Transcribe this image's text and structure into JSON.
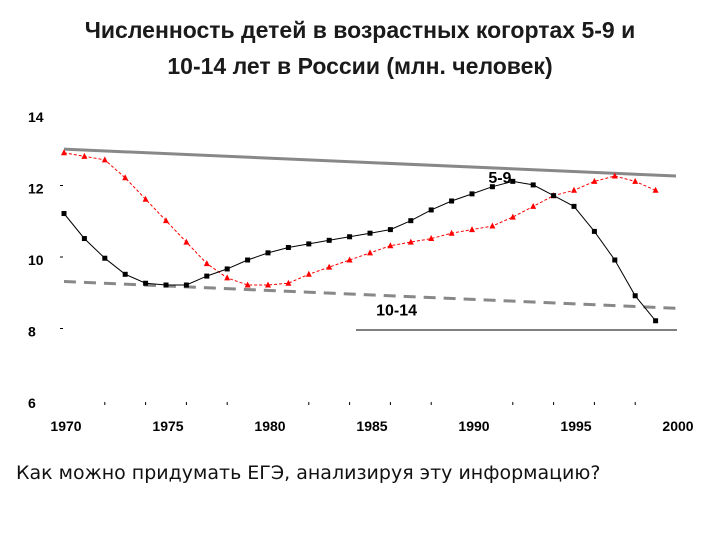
{
  "title_line1": "Численность детей в возрастных когортах 5-9 и",
  "title_line2": "10-14 лет в России (млн. человек)",
  "question": "Как можно придумать ЕГЭ, анализируя эту информацию?",
  "chart_data": {
    "type": "line",
    "xlim": [
      1970,
      2000
    ],
    "ylim": [
      6,
      14
    ],
    "xticks": [
      1970,
      1975,
      1980,
      1985,
      1990,
      1995,
      2000
    ],
    "yticks": [
      6,
      8,
      10,
      12,
      14
    ],
    "series": [
      {
        "name": "5-9",
        "color": "#ff0000",
        "marker": "triangle",
        "x": [
          1970,
          1971,
          1972,
          1973,
          1974,
          1975,
          1976,
          1977,
          1978,
          1979,
          1980,
          1981,
          1982,
          1983,
          1984,
          1985,
          1986,
          1987,
          1988,
          1989,
          1990,
          1991,
          1992,
          1993,
          1994,
          1995,
          1996,
          1997,
          1998,
          1999
        ],
        "values": [
          13.0,
          12.9,
          12.8,
          12.3,
          11.7,
          11.1,
          10.5,
          9.9,
          9.5,
          9.3,
          9.3,
          9.35,
          9.6,
          9.8,
          10.0,
          10.2,
          10.4,
          10.5,
          10.6,
          10.75,
          10.85,
          10.95,
          11.2,
          11.5,
          11.8,
          11.95,
          12.2,
          12.35,
          12.2,
          11.95
        ]
      },
      {
        "name": "10-14",
        "color": "#000000",
        "marker": "square",
        "x": [
          1970,
          1971,
          1972,
          1973,
          1974,
          1975,
          1976,
          1977,
          1978,
          1979,
          1980,
          1981,
          1982,
          1983,
          1984,
          1985,
          1986,
          1987,
          1988,
          1989,
          1990,
          1991,
          1992,
          1993,
          1994,
          1995,
          1996,
          1997,
          1998,
          1999
        ],
        "values": [
          11.3,
          10.6,
          10.05,
          9.6,
          9.35,
          9.3,
          9.3,
          9.55,
          9.75,
          10.0,
          10.2,
          10.35,
          10.45,
          10.55,
          10.65,
          10.75,
          10.85,
          11.1,
          11.4,
          11.65,
          11.85,
          12.05,
          12.2,
          12.1,
          11.8,
          11.5,
          10.8,
          10.0,
          9.0,
          8.3
        ]
      }
    ],
    "trendlines": [
      {
        "series": "5-9",
        "style": "solid",
        "color": "#888888",
        "from": [
          1970,
          13.1
        ],
        "to": [
          2000,
          12.35
        ]
      },
      {
        "series": "10-14",
        "style": "dashed",
        "color": "#888888",
        "from": [
          1970,
          9.4
        ],
        "to": [
          2000,
          8.65
        ]
      }
    ],
    "labels": [
      {
        "text": "5-9",
        "x": 1990.8,
        "y": 12.15
      },
      {
        "text": "10-14",
        "x": 1985.3,
        "y": 8.45
      }
    ],
    "grid": false,
    "legend": "none"
  }
}
